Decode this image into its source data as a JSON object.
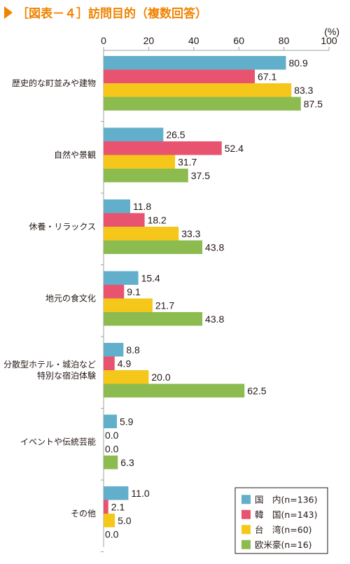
{
  "colors": {
    "accent": "#f08300",
    "axis": "#9fa0a0",
    "text": "#231815"
  },
  "chart_data": {
    "type": "bar",
    "orientation": "horizontal",
    "title": "［図表－４］訪問目的（複数回答）",
    "unit_label": "(%)",
    "xlim": [
      0,
      100
    ],
    "ticks": [
      0,
      20,
      40,
      60,
      80,
      100
    ],
    "grid": false,
    "legend_position": "bottom-right",
    "categories": [
      [
        "歴史的な町並みや建物"
      ],
      [
        "自然や景観"
      ],
      [
        "休養・リラックス"
      ],
      [
        "地元の食文化"
      ],
      [
        "分散型ホテル・城泊など",
        "特別な宿泊体験"
      ],
      [
        "イベントや伝統芸能"
      ],
      [
        "その他"
      ]
    ],
    "series": [
      {
        "name": "国　内(n=136)",
        "color": "#62afcb",
        "values": [
          80.9,
          26.5,
          11.8,
          15.4,
          8.8,
          5.9,
          11.0
        ]
      },
      {
        "name": "韓　国(n=143)",
        "color": "#e8546f",
        "values": [
          67.1,
          52.4,
          18.2,
          9.1,
          4.9,
          0.0,
          2.1
        ]
      },
      {
        "name": "台　湾(n=60)",
        "color": "#f5c71a",
        "values": [
          83.3,
          31.7,
          33.3,
          21.7,
          20.0,
          0.0,
          5.0
        ]
      },
      {
        "name": "欧米豪(n=16)",
        "color": "#8cbb50",
        "values": [
          87.5,
          37.5,
          43.8,
          43.8,
          62.5,
          6.3,
          0.0
        ]
      }
    ]
  }
}
